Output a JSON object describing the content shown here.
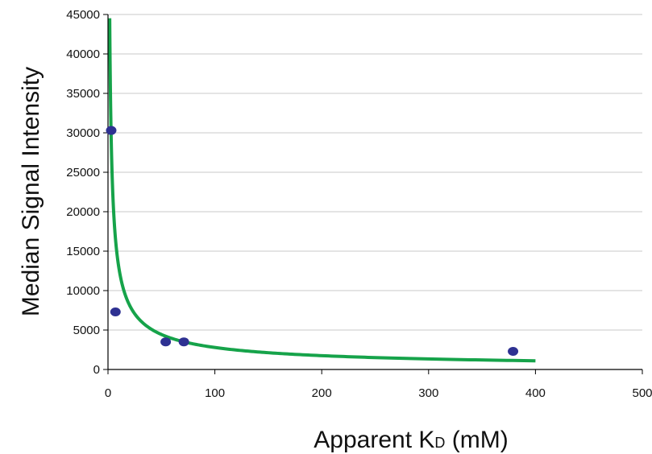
{
  "chart_data": {
    "type": "scatter",
    "title": "",
    "xlabel": "Apparent K",
    "xlabel_subscript": "D",
    "xlabel_unit": " (mM)",
    "ylabel": "Median Signal Intensity",
    "xlim": [
      0,
      500
    ],
    "ylim": [
      0,
      45000
    ],
    "x_ticks": [
      0,
      100,
      200,
      300,
      400,
      500
    ],
    "y_ticks": [
      0,
      5000,
      10000,
      15000,
      20000,
      25000,
      30000,
      35000,
      40000,
      45000
    ],
    "grid": "horizontal",
    "legend": "none",
    "series": [
      {
        "kind": "points",
        "color": "#2e3192",
        "points": [
          {
            "x": 3,
            "y": 30300
          },
          {
            "x": 7,
            "y": 7300
          },
          {
            "x": 54,
            "y": 3500
          },
          {
            "x": 71,
            "y": 3500
          },
          {
            "x": 379,
            "y": 2300
          }
        ]
      },
      {
        "kind": "fit-curve",
        "color": "#16a34a",
        "x_range": [
          1.6,
          400
        ],
        "power_law": {
          "coefficient": 61000,
          "exponent": -0.67
        }
      }
    ]
  }
}
